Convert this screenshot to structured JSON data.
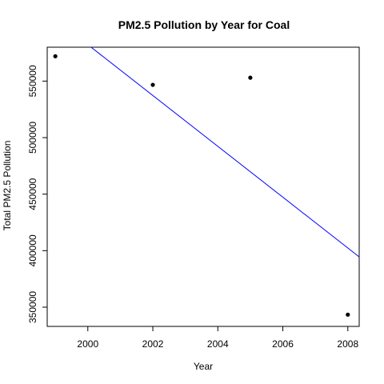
{
  "chart_data": {
    "type": "scatter",
    "title": "PM2.5 Pollution by Year for Coal",
    "xlabel": "Year",
    "ylabel": "Total PM2.5 Pollution",
    "xlim": [
      1998.75,
      2008.35
    ],
    "ylim": [
      333000,
      580000
    ],
    "xticks": [
      2000,
      2002,
      2004,
      2006,
      2008
    ],
    "yticks": [
      350000,
      400000,
      450000,
      500000,
      550000
    ],
    "grid": false,
    "legend": "none",
    "series": [
      {
        "type": "scatter",
        "color": "#000000",
        "points": [
          {
            "x": 1999,
            "y": 572000
          },
          {
            "x": 2002,
            "y": 546700
          },
          {
            "x": 2005,
            "y": 553000
          },
          {
            "x": 2008,
            "y": 343400
          }
        ]
      },
      {
        "type": "line",
        "color": "#0000ff",
        "points": [
          {
            "x": 2000.1,
            "y": 580000
          },
          {
            "x": 2008.35,
            "y": 394500
          }
        ]
      }
    ]
  }
}
